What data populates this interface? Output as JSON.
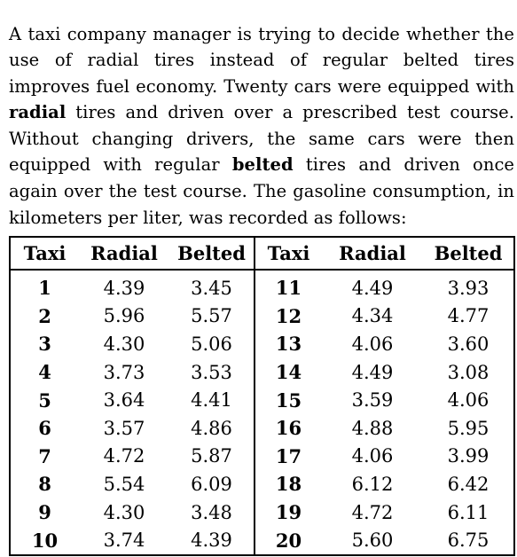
{
  "problem": {
    "part1": "A taxi company manager is trying to decide whether the use of radial tires instead of regular belted tires improves fuel economy. Twenty cars were equipped with ",
    "bold1": "radial",
    "part2": " tires and driven over a prescribed test course. Without changing drivers, the same cars were then equipped with regular ",
    "bold2": "belted",
    "part3": " tires and driven once again over the test course. The gasoline consumption, in kilometers per liter, was recorded as follows:"
  },
  "table": {
    "headers": [
      "Taxi",
      "Radial",
      "Belted",
      "Taxi",
      "Radial",
      "Belted"
    ],
    "rows": [
      {
        "taxi1": "1",
        "radial1": "4.39",
        "belted1": "3.45",
        "taxi2": "11",
        "radial2": "4.49",
        "belted2": "3.93"
      },
      {
        "taxi1": "2",
        "radial1": "5.96",
        "belted1": "5.57",
        "taxi2": "12",
        "radial2": "4.34",
        "belted2": "4.77"
      },
      {
        "taxi1": "3",
        "radial1": "4.30",
        "belted1": "5.06",
        "taxi2": "13",
        "radial2": "4.06",
        "belted2": "3.60"
      },
      {
        "taxi1": "4",
        "radial1": "3.73",
        "belted1": "3.53",
        "taxi2": "14",
        "radial2": "4.49",
        "belted2": "3.08"
      },
      {
        "taxi1": "5",
        "radial1": "3.64",
        "belted1": "4.41",
        "taxi2": "15",
        "radial2": "3.59",
        "belted2": "4.06"
      },
      {
        "taxi1": "6",
        "radial1": "3.57",
        "belted1": "4.86",
        "taxi2": "16",
        "radial2": "4.88",
        "belted2": "5.95"
      },
      {
        "taxi1": "7",
        "radial1": "4.72",
        "belted1": "5.87",
        "taxi2": "17",
        "radial2": "4.06",
        "belted2": "3.99"
      },
      {
        "taxi1": "8",
        "radial1": "5.54",
        "belted1": "6.09",
        "taxi2": "18",
        "radial2": "6.12",
        "belted2": "6.42"
      },
      {
        "taxi1": "9",
        "radial1": "4.30",
        "belted1": "3.48",
        "taxi2": "19",
        "radial2": "4.72",
        "belted2": "6.11"
      },
      {
        "taxi1": "10",
        "radial1": "3.74",
        "belted1": "4.39",
        "taxi2": "20",
        "radial2": "5.60",
        "belted2": "6.75"
      }
    ]
  }
}
